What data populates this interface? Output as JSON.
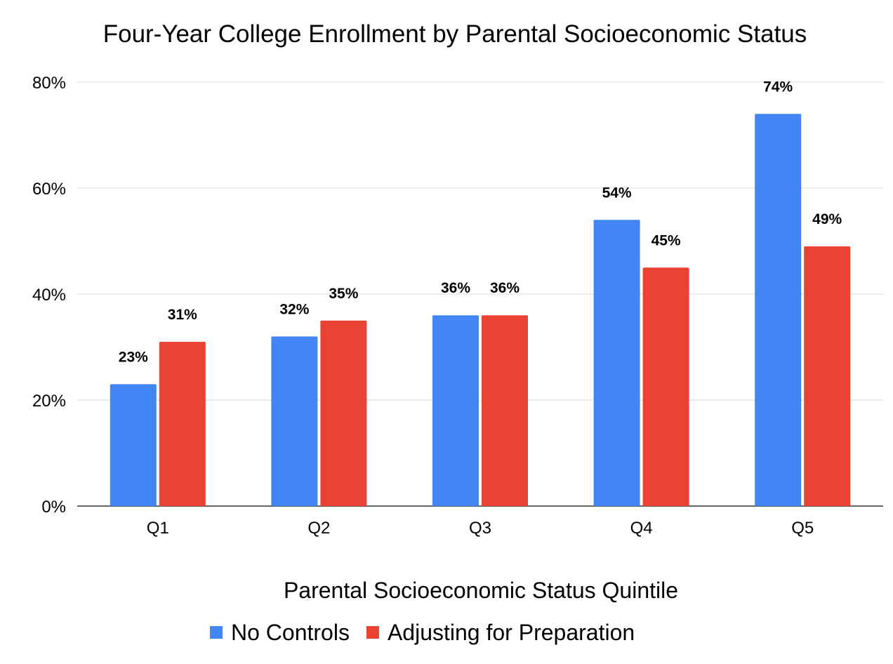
{
  "chart_data": {
    "type": "bar",
    "title": "Four-Year College Enrollment by Parental Socioeconomic Status",
    "xlabel": "Parental Socioeconomic Status Quintile",
    "ylabel": "",
    "categories": [
      "Q1",
      "Q2",
      "Q3",
      "Q4",
      "Q5"
    ],
    "series": [
      {
        "name": "No Controls",
        "color": "#4285f4",
        "values": [
          23,
          32,
          36,
          54,
          74
        ],
        "labels": [
          "23%",
          "32%",
          "36%",
          "54%",
          "74%"
        ]
      },
      {
        "name": "Adjusting for Preparation",
        "color": "#ea4335",
        "values": [
          31,
          35,
          36,
          45,
          49
        ],
        "labels": [
          "31%",
          "35%",
          "36%",
          "45%",
          "49%"
        ]
      }
    ],
    "ylim": [
      0,
      80
    ],
    "yticks": [
      0,
      20,
      40,
      60,
      80
    ],
    "ytick_labels": [
      "0%",
      "20%",
      "40%",
      "60%",
      "80%"
    ],
    "grid": true,
    "legend": "bottom"
  }
}
